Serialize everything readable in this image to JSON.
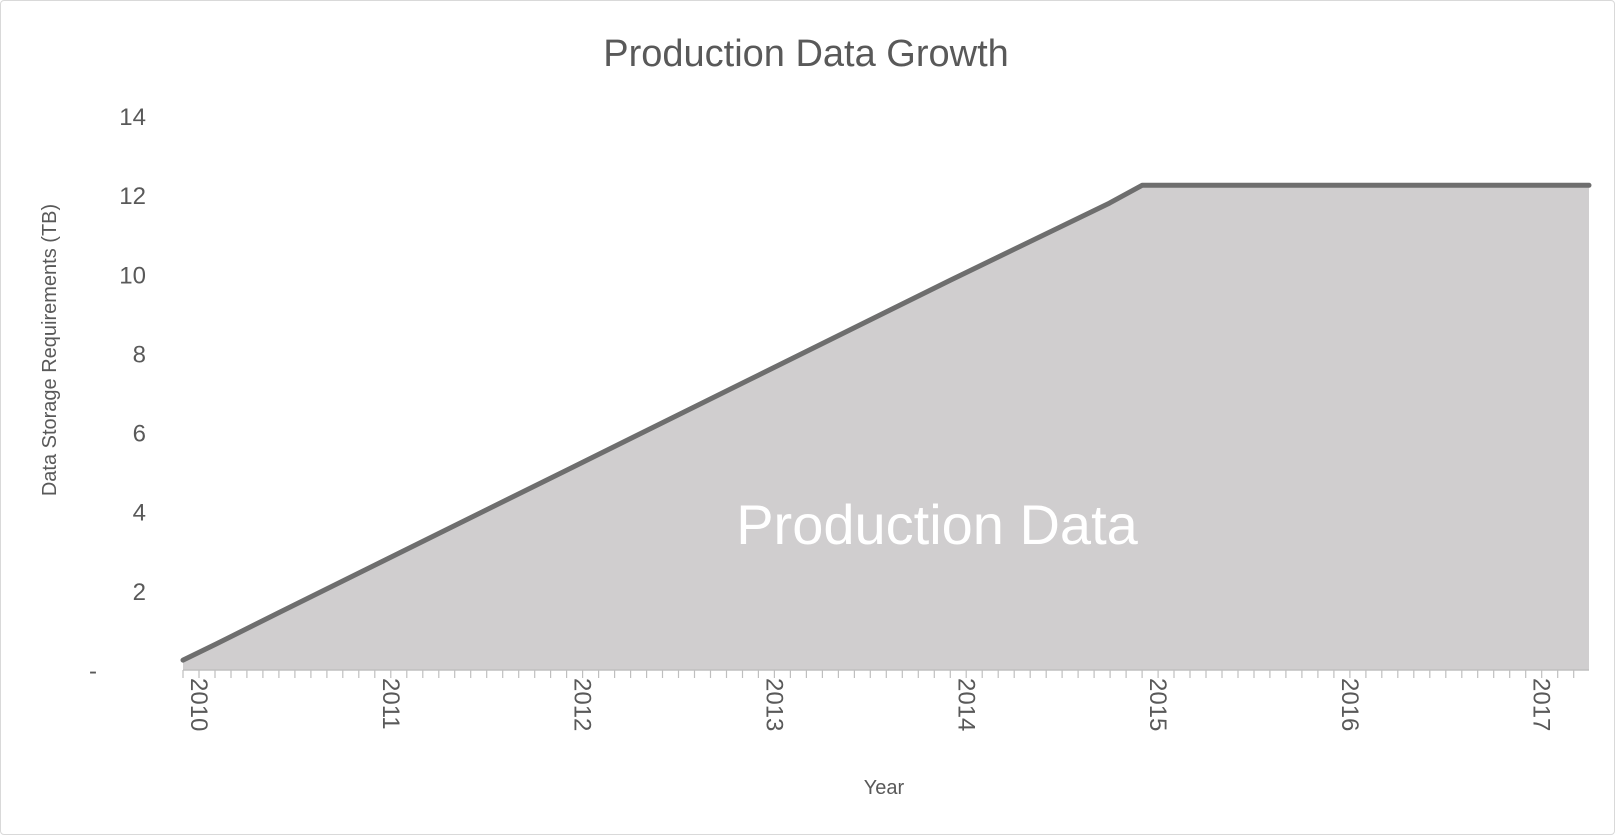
{
  "chart_data": {
    "type": "area",
    "title": "Production Data Growth",
    "xlabel": "Year",
    "ylabel": "Data Storage Requirements (TB)",
    "ylim": [
      0,
      14
    ],
    "yticks": [
      0,
      2,
      4,
      6,
      8,
      10,
      12,
      14
    ],
    "ytick_labels": [
      "-",
      "2",
      "4",
      "6",
      "8",
      "10",
      "12",
      "14"
    ],
    "xlim": [
      2010,
      2017.33
    ],
    "xticks": [
      2010,
      2011,
      2012,
      2013,
      2014,
      2015,
      2016,
      2017
    ],
    "xtick_labels": [
      "2010",
      "2011",
      "2012",
      "2013",
      "2014",
      "2015",
      "2016",
      "2017"
    ],
    "minor_ticks_per_year": 12,
    "grid": false,
    "legend": "none",
    "series": [
      {
        "label": "Production Data",
        "fill_color": "#d0cecf",
        "line_color": "#6e6e6e",
        "x": [
          2010,
          2010.17,
          2010.5,
          2011,
          2012,
          2013,
          2014,
          2014.83,
          2015,
          2016,
          2017,
          2017.33
        ],
        "y": [
          0.25,
          0.65,
          1.45,
          2.65,
          5.05,
          7.45,
          9.85,
          11.8,
          12.25,
          12.25,
          12.25,
          12.25
        ]
      }
    ]
  }
}
